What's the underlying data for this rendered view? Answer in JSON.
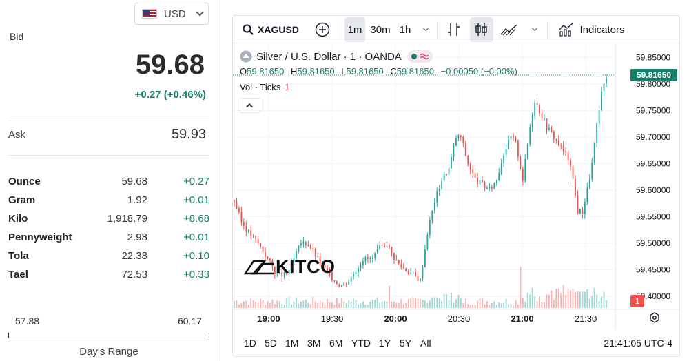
{
  "currency": {
    "code": "USD",
    "flag": "us-flag"
  },
  "quote": {
    "bid_label": "Bid",
    "bid": "59.68",
    "change": "+0.27 (+0.46%)",
    "ask_label": "Ask",
    "ask": "59.93"
  },
  "units": [
    {
      "name": "Ounce",
      "price": "59.68",
      "change": "+0.27"
    },
    {
      "name": "Gram",
      "price": "1.92",
      "change": "+0.01"
    },
    {
      "name": "Kilo",
      "price": "1,918.79",
      "change": "+8.68"
    },
    {
      "name": "Pennyweight",
      "price": "2.98",
      "change": "+0.01"
    },
    {
      "name": "Tola",
      "price": "22.38",
      "change": "+0.10"
    },
    {
      "name": "Tael",
      "price": "72.53",
      "change": "+0.33"
    }
  ],
  "days_range": {
    "low": "57.88",
    "high": "60.17",
    "label": "Day's Range"
  },
  "toolbar": {
    "symbol": "XAGUSD",
    "intervals": [
      "1m",
      "30m",
      "1h"
    ],
    "active_interval": "1m",
    "indicators_label": "Indicators"
  },
  "legend": {
    "title": "Silver / U.S. Dollar · 1 · OANDA",
    "o_label": "O",
    "o": "59.81650",
    "h_label": "H",
    "h": "59.81650",
    "l_label": "L",
    "l": "59.81650",
    "c_label": "C",
    "c": "59.81650",
    "chg": "−0.00050 (−0.00%)",
    "vol_label": "Vol · Ticks",
    "vol_value": "1"
  },
  "chart_data": {
    "type": "candlestick",
    "y_ticks": [
      "59.85000",
      "59.80000",
      "59.75000",
      "59.70000",
      "59.65000",
      "59.60000",
      "59.55000",
      "59.50000",
      "59.45000",
      "59.40000"
    ],
    "ylim": [
      59.375,
      59.875
    ],
    "x_ticks": [
      "19:00",
      "19:30",
      "20:00",
      "20:30",
      "21:00",
      "21:30"
    ],
    "last_price": "59.81650",
    "last_volume": "1",
    "price_path": [
      [
        0,
        59.58
      ],
      [
        6,
        59.54
      ],
      [
        12,
        59.52
      ],
      [
        20,
        59.5
      ],
      [
        28,
        59.47
      ],
      [
        36,
        59.44
      ],
      [
        44,
        59.44
      ],
      [
        50,
        59.47
      ],
      [
        56,
        59.5
      ],
      [
        62,
        59.5
      ],
      [
        70,
        59.47
      ],
      [
        76,
        59.45
      ],
      [
        84,
        59.43
      ],
      [
        90,
        59.42
      ],
      [
        96,
        59.43
      ],
      [
        102,
        59.45
      ],
      [
        108,
        59.47
      ],
      [
        116,
        59.47
      ],
      [
        122,
        59.49
      ],
      [
        128,
        59.5
      ],
      [
        132,
        59.48
      ],
      [
        138,
        59.46
      ],
      [
        144,
        59.45
      ],
      [
        150,
        59.44
      ],
      [
        156,
        59.43
      ],
      [
        162,
        59.52
      ],
      [
        168,
        59.58
      ],
      [
        174,
        59.62
      ],
      [
        180,
        59.64
      ],
      [
        186,
        59.7
      ],
      [
        190,
        59.7
      ],
      [
        196,
        59.65
      ],
      [
        202,
        59.62
      ],
      [
        208,
        59.61
      ],
      [
        214,
        59.6
      ],
      [
        220,
        59.62
      ],
      [
        226,
        59.67
      ],
      [
        232,
        59.7
      ],
      [
        236,
        59.69
      ],
      [
        242,
        59.62
      ],
      [
        248,
        59.72
      ],
      [
        252,
        59.77
      ],
      [
        256,
        59.75
      ],
      [
        262,
        59.72
      ],
      [
        268,
        59.7
      ],
      [
        274,
        59.68
      ],
      [
        280,
        59.66
      ],
      [
        284,
        59.62
      ],
      [
        288,
        59.56
      ],
      [
        292,
        59.56
      ],
      [
        296,
        59.6
      ],
      [
        300,
        59.65
      ],
      [
        304,
        59.72
      ],
      [
        308,
        59.78
      ],
      [
        312,
        59.816
      ]
    ],
    "x_range": [
      0,
      312
    ]
  },
  "time_ranges": [
    "1D",
    "5D",
    "1M",
    "3M",
    "6M",
    "YTD",
    "1Y",
    "5Y",
    "All"
  ],
  "clock": "21:41:05 UTC-4",
  "brand": "KITCO",
  "colors": {
    "up": "#26a69a",
    "down": "#ef5350",
    "positive_text": "#15806a",
    "last_price_bg": "#15806a"
  }
}
